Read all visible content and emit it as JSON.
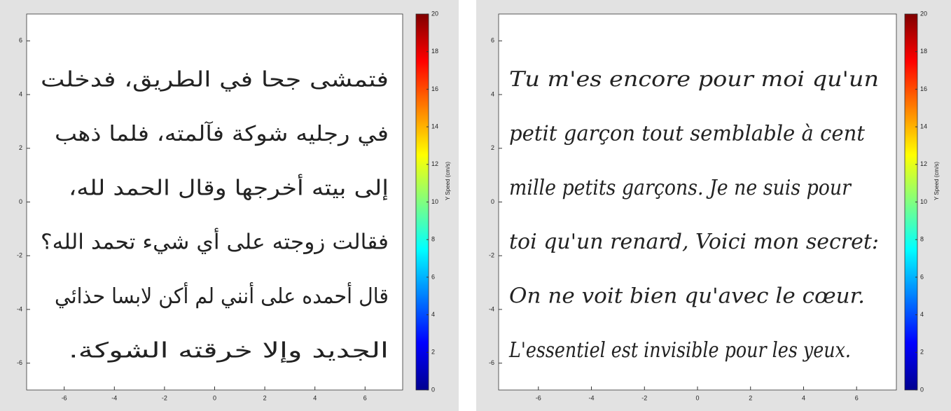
{
  "chart_data": [
    {
      "type": "handwriting",
      "lines": [
        "فتمشى جحا في الطريق، فدخلت",
        "في رجليه شوكة فآلمته، فلما ذهب",
        "إلى بيته أخرجها وقال الحمد لله،",
        "فقالت زوجته على أي شيء تحمد الله؟",
        "قال أحمده على أنني لم أكن لابسا حذائي",
        "الجديد وإلا خرقته الشوكة."
      ],
      "direction": "rtl",
      "xlim": [
        -7.5,
        7.5
      ],
      "ylim": [
        -7,
        7
      ],
      "xticks": [
        -6,
        -4,
        -2,
        0,
        2,
        4,
        6
      ],
      "yticks": [
        -6,
        -4,
        -2,
        0,
        2,
        4,
        6
      ],
      "colorbar": {
        "label": "Y Speed (cm/s)",
        "lim": [
          0,
          20
        ],
        "ticks": [
          0,
          2,
          4,
          6,
          8,
          10,
          12,
          14,
          16,
          18,
          20
        ]
      }
    },
    {
      "type": "handwriting",
      "lines": [
        "Tu m'es encore pour moi qu'un",
        "petit garçon tout semblable à cent",
        "mille petits garçons. Je ne suis pour",
        "toi qu'un renard, Voici mon secret:",
        "On ne voit bien qu'avec le cœur.",
        "L'essentiel est invisible pour les yeux."
      ],
      "direction": "ltr",
      "xlim": [
        -7.5,
        7.5
      ],
      "ylim": [
        -7,
        7
      ],
      "xticks": [
        -6,
        -4,
        -2,
        0,
        2,
        4,
        6
      ],
      "yticks": [
        -6,
        -4,
        -2,
        0,
        2,
        4,
        6
      ],
      "colorbar": {
        "label": "Y Speed (cm/s)",
        "lim": [
          0,
          20
        ],
        "ticks": [
          0,
          2,
          4,
          6,
          8,
          10,
          12,
          14,
          16,
          18,
          20
        ]
      }
    }
  ]
}
